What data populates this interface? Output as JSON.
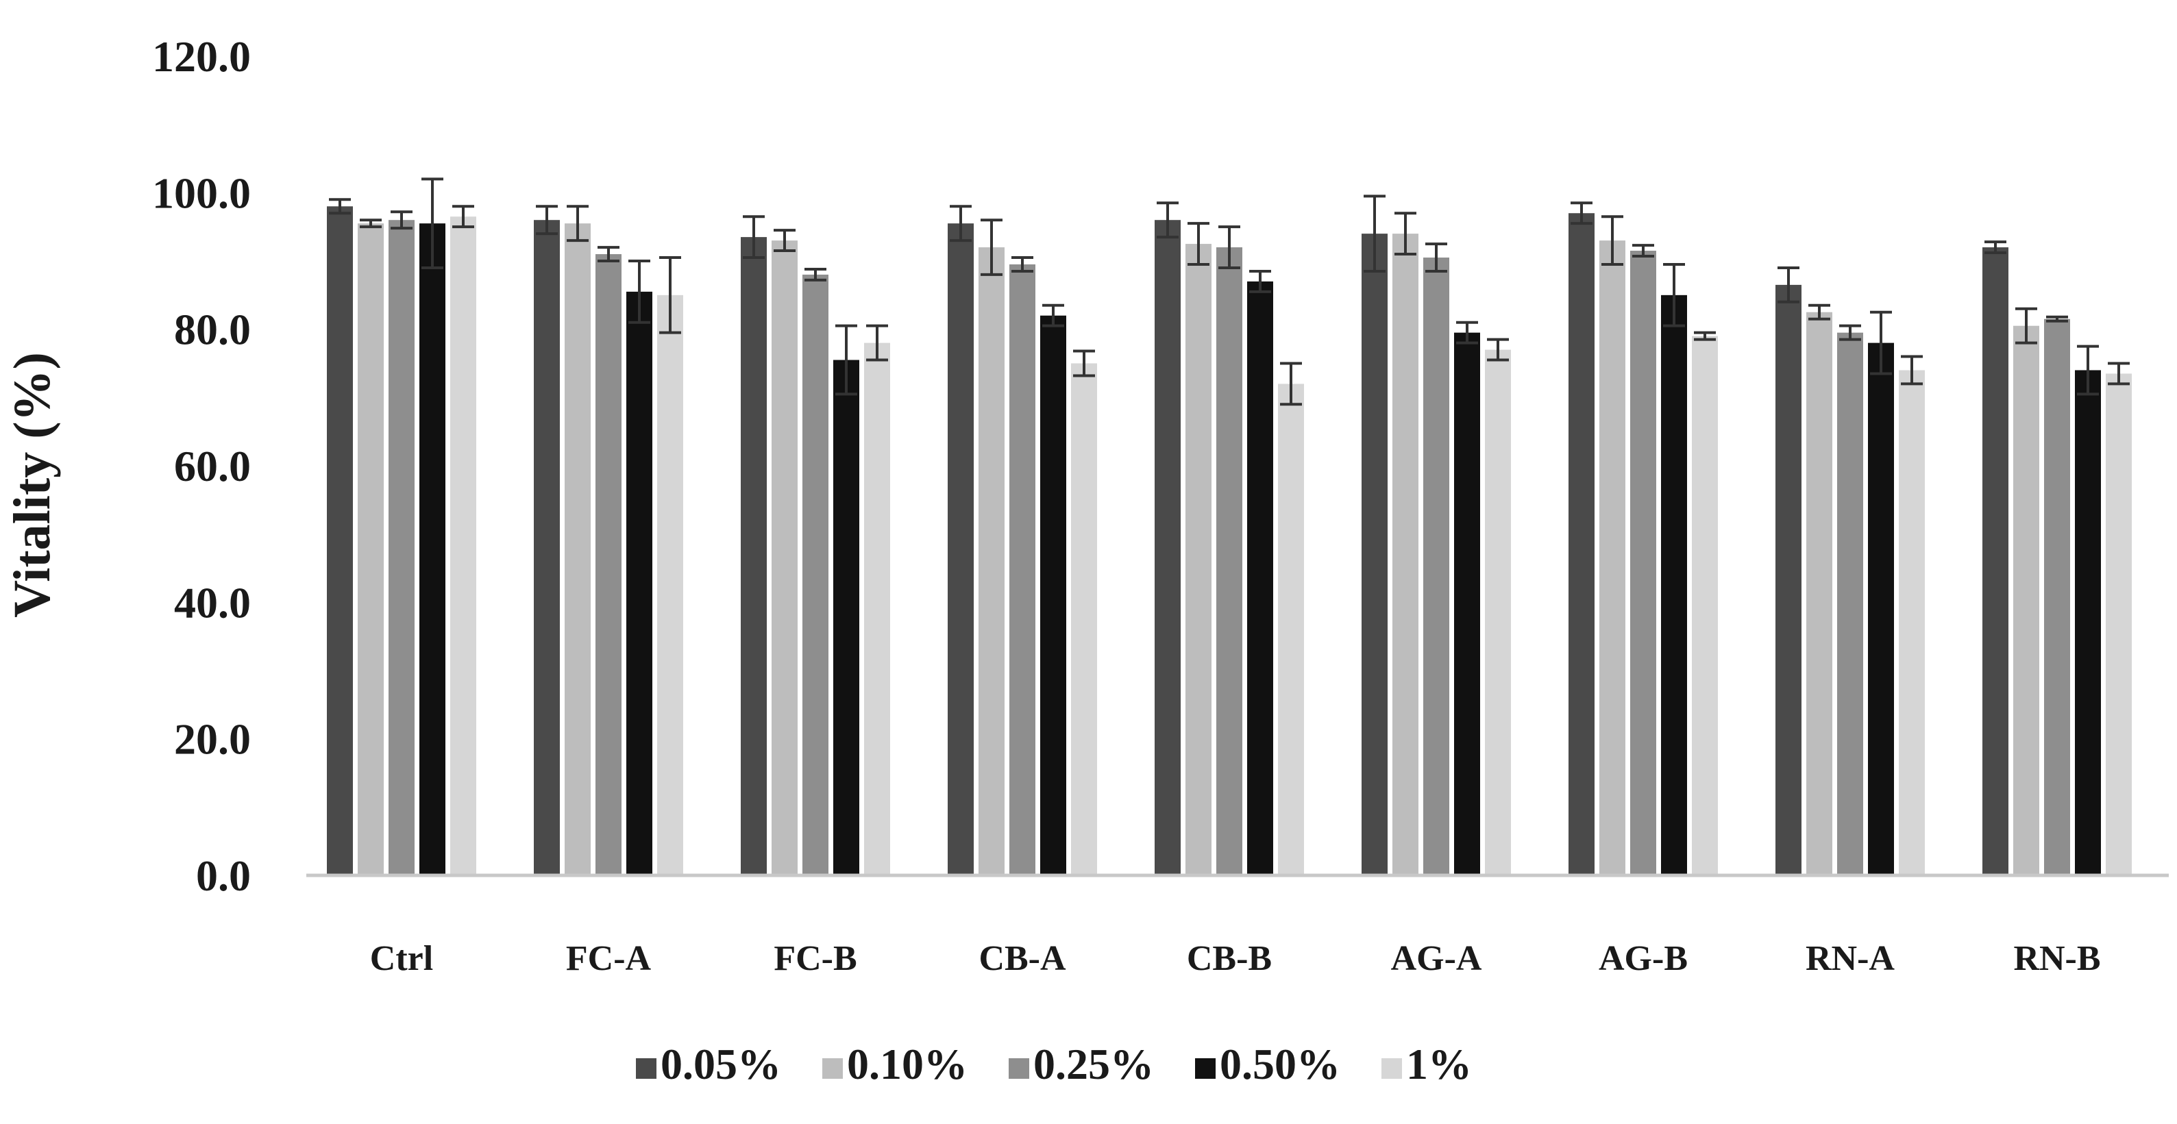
{
  "chart_data": {
    "type": "bar",
    "title": "",
    "xlabel": "",
    "ylabel": "Vitality (%)",
    "ylim": [
      0,
      120
    ],
    "yticks": [
      "0.0",
      "20.0",
      "40.0",
      "60.0",
      "80.0",
      "100.0",
      "120.0"
    ],
    "grid": false,
    "legend_position": "bottom",
    "categories": [
      "Ctrl",
      "FC-A",
      "FC-B",
      "CB-A",
      "CB-B",
      "AG-A",
      "AG-B",
      "RN-A",
      "RN-B"
    ],
    "series": [
      {
        "name": "0.05%",
        "color": "#4a4a4a",
        "values": [
          98.0,
          96.0,
          93.5,
          95.5,
          96.0,
          94.0,
          97.0,
          86.5,
          92.0
        ],
        "errors": [
          1.0,
          2.0,
          3.0,
          2.5,
          2.5,
          5.5,
          1.5,
          2.5,
          0.8
        ]
      },
      {
        "name": "0.10%",
        "color": "#bdbdbd",
        "values": [
          95.5,
          95.5,
          93.0,
          92.0,
          92.5,
          94.0,
          93.0,
          82.5,
          80.5
        ],
        "errors": [
          0.5,
          2.5,
          1.5,
          4.0,
          3.0,
          3.0,
          3.5,
          1.0,
          2.5
        ]
      },
      {
        "name": "0.25%",
        "color": "#8e8e8e",
        "values": [
          96.0,
          91.0,
          88.0,
          89.5,
          92.0,
          90.5,
          91.5,
          79.5,
          81.5
        ],
        "errors": [
          1.2,
          1.0,
          0.8,
          1.0,
          3.0,
          2.0,
          0.8,
          1.0,
          0.3
        ]
      },
      {
        "name": "0.50%",
        "color": "#111111",
        "values": [
          95.5,
          85.5,
          75.5,
          82.0,
          87.0,
          79.5,
          85.0,
          78.0,
          74.0
        ],
        "errors": [
          6.5,
          4.5,
          5.0,
          1.5,
          1.5,
          1.5,
          4.5,
          4.5,
          3.5
        ]
      },
      {
        "name": "1%",
        "color": "#d6d6d6",
        "values": [
          96.5,
          85.0,
          78.0,
          75.0,
          72.0,
          77.0,
          79.0,
          74.0,
          73.5
        ],
        "errors": [
          1.5,
          5.5,
          2.5,
          1.8,
          3.0,
          1.5,
          0.5,
          2.0,
          1.5
        ]
      }
    ]
  }
}
